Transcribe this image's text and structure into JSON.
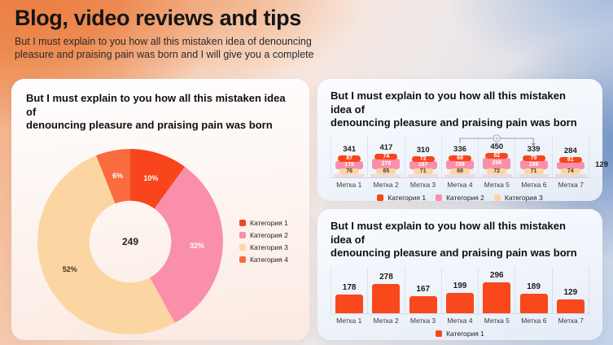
{
  "header": {
    "title": "Blog, video reviews and tips",
    "subtitle_lines": [
      "But I must explain to you how all this mistaken idea of denouncing",
      "pleasure and praising pain was born and I will give you a complete"
    ]
  },
  "card_title_lines": [
    "But I must explain to you how all this mistaken idea of",
    "denouncing pleasure and praising pain was born"
  ],
  "chart_data": [
    {
      "type": "pie",
      "variant": "donut",
      "title": "But I must explain to you how all this mistaken idea of denouncing pleasure and praising pain was born",
      "labels": [
        "Категория 1",
        "Категория 2",
        "Категория 3",
        "Категория 4"
      ],
      "values": [
        10,
        32,
        52,
        6
      ],
      "unit": "%",
      "center_label": "249",
      "colors": [
        "#F8451C",
        "#FA8FA9",
        "#FBD6A2",
        "#FA6B3F"
      ],
      "label_colors": [
        "#FFFFFF",
        "#FFFFFF",
        "#46351F",
        "#FFFFFF"
      ],
      "legend_position": "right"
    },
    {
      "type": "bar",
      "variant": "stacked",
      "title": "But I must explain to you how all this mistaken idea of denouncing pleasure and praising pain was born",
      "categories": [
        "Метка 1",
        "Метка 2",
        "Метка 3",
        "Метка 4",
        "Метка 5",
        "Метка 6",
        "Метка 7"
      ],
      "series": [
        {
          "name": "Категория 1",
          "color": "#F8451C",
          "values": [
            87,
            74,
            72,
            69,
            82,
            79,
            81
          ]
        },
        {
          "name": "Категория 2",
          "color": "#FA8FA9",
          "values": [
            178,
            278,
            167,
            199,
            296,
            189,
            129
          ]
        },
        {
          "name": "Категория 3",
          "color": "#FBD6A2",
          "values": [
            76,
            65,
            71,
            68,
            72,
            71,
            74
          ]
        }
      ],
      "totals": [
        341,
        417,
        310,
        336,
        450,
        339,
        284
      ],
      "annotation": {
        "from": "Метка 4",
        "to": "Метка 6"
      },
      "outside_label_category": "Метка 7",
      "legend_position": "bottom"
    },
    {
      "type": "bar",
      "title": "But I must explain to you how all this mistaken idea of denouncing pleasure and praising pain was born",
      "categories": [
        "Метка 1",
        "Метка 2",
        "Метка 3",
        "Метка 4",
        "Метка 5",
        "Метка 6",
        "Метка 7"
      ],
      "series": [
        {
          "name": "Категория 1",
          "color": "#F8481C",
          "values": [
            178,
            278,
            167,
            199,
            296,
            189,
            129
          ]
        }
      ],
      "legend_position": "bottom"
    }
  ]
}
